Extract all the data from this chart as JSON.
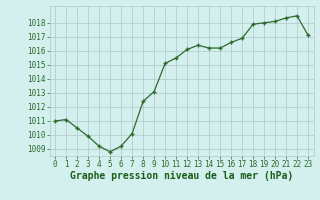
{
  "x": [
    0,
    1,
    2,
    3,
    4,
    5,
    6,
    7,
    8,
    9,
    10,
    11,
    12,
    13,
    14,
    15,
    16,
    17,
    18,
    19,
    20,
    21,
    22,
    23
  ],
  "y": [
    1011.0,
    1011.1,
    1010.5,
    1009.9,
    1009.2,
    1008.8,
    1009.2,
    1010.1,
    1012.4,
    1013.1,
    1015.1,
    1015.5,
    1016.1,
    1016.4,
    1016.2,
    1016.2,
    1016.6,
    1016.9,
    1017.9,
    1018.0,
    1018.1,
    1018.35,
    1018.5,
    1017.1
  ],
  "line_color": "#2d6a2d",
  "marker_color": "#2d6a2d",
  "bg_color": "#d4f0ee",
  "grid_color": "#b0c8c8",
  "xlabel": "Graphe pression niveau de la mer (hPa)",
  "xlabel_color": "#1a5c1a",
  "ylim": [
    1008.5,
    1019.2
  ],
  "yticks": [
    1009,
    1010,
    1011,
    1012,
    1013,
    1014,
    1015,
    1016,
    1017,
    1018
  ],
  "xticks": [
    0,
    1,
    2,
    3,
    4,
    5,
    6,
    7,
    8,
    9,
    10,
    11,
    12,
    13,
    14,
    15,
    16,
    17,
    18,
    19,
    20,
    21,
    22,
    23
  ],
  "tick_fontsize": 5.5,
  "xlabel_fontsize": 7.0,
  "marker_size": 3.5,
  "line_width": 0.9
}
